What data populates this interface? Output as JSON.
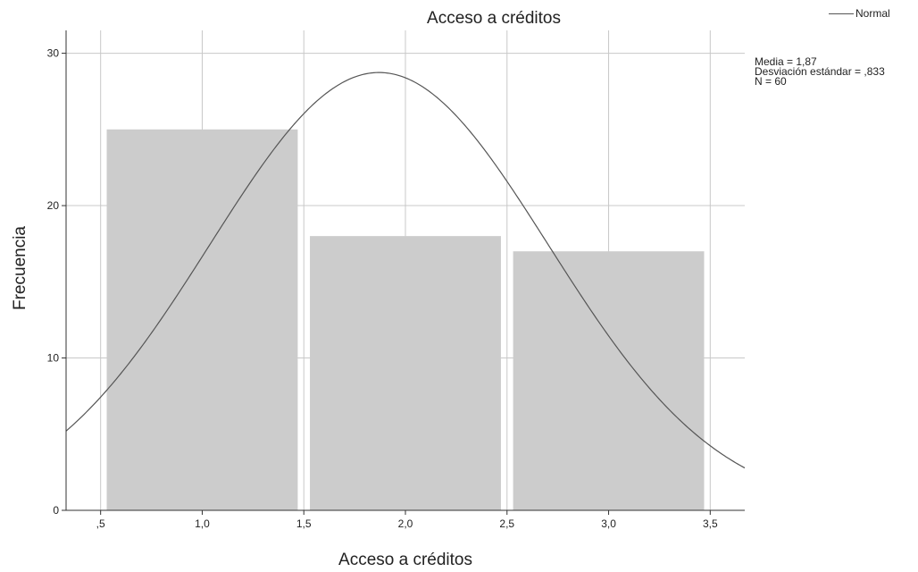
{
  "chart_data": {
    "type": "bar",
    "title": "Acceso a créditos",
    "xlabel": "Acceso a créditos",
    "ylabel": "Frecuencia",
    "xlim": [
      0.33,
      3.67
    ],
    "ylim": [
      0,
      31.5
    ],
    "x_ticks": [
      0.5,
      1.0,
      1.5,
      2.0,
      2.5,
      3.0,
      3.5
    ],
    "x_tick_labels": [
      ",5",
      "1,0",
      "1,5",
      "2,0",
      "2,5",
      "3,0",
      "3,5"
    ],
    "y_ticks": [
      0,
      10,
      20,
      30
    ],
    "y_tick_labels": [
      "0",
      "10",
      "20",
      "30"
    ],
    "categories": [
      "1",
      "2",
      "3"
    ],
    "bins": [
      [
        0.5,
        1.5
      ],
      [
        1.5,
        2.5
      ],
      [
        2.5,
        3.5
      ]
    ],
    "values": [
      25,
      18,
      17
    ],
    "bar_color": "#cccccc",
    "grid": true,
    "normal_curve": {
      "name": "Normal",
      "mean": 1.87,
      "sd": 0.833,
      "n": 60,
      "bin_width": 1,
      "color": "#555555"
    },
    "legend_position": "top-right",
    "stats": {
      "mean_label": "Media = 1,87",
      "sd_label": "Desviación estándar = ,833",
      "n_label": "N = 60"
    }
  }
}
